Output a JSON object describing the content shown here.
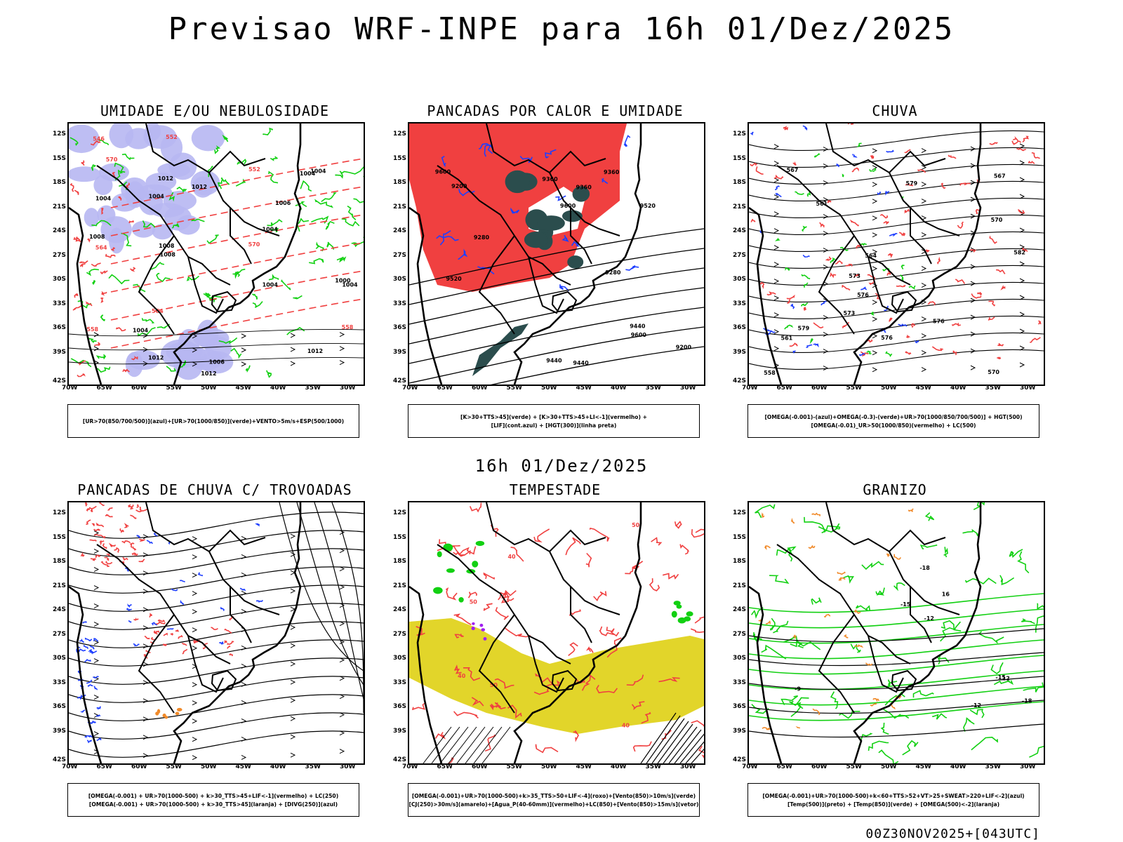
{
  "title": "Previsao WRF-INPE  para 16h 01/Dez/2025",
  "subtitle": "16h 01/Dez/2025",
  "footer": "00Z30NOV2025+[043UTC]",
  "axes": {
    "lat": [
      "12S",
      "15S",
      "18S",
      "21S",
      "24S",
      "27S",
      "30S",
      "33S",
      "36S",
      "39S",
      "42S"
    ],
    "lon": [
      "70W",
      "65W",
      "60W",
      "55W",
      "50W",
      "45W",
      "40W",
      "35W",
      "30W"
    ]
  },
  "panels": [
    {
      "id": "umidade",
      "title": "UMIDADE E/OU NEBULOSIDADE",
      "legend": [
        "[UR>70(850/700/500)](azul)+[UR>70(1000/850)](verde)+VENTO>5m/s+ESP(500/1000)"
      ],
      "contour_labels": [
        "1004",
        "1004",
        "1004",
        "1006",
        "1004",
        "1012",
        "1004",
        "1008",
        "1004",
        "1004",
        "1000",
        "1012",
        "1006",
        "1004",
        "1008",
        "1012",
        "1008",
        "1012",
        "1012"
      ],
      "red_labels": [
        "570",
        "564",
        "570",
        "558",
        "552",
        "546",
        "564",
        "558",
        "552"
      ]
    },
    {
      "id": "pancadas-calor",
      "title": "PANCADAS POR CALOR E UMIDADE",
      "legend": [
        "[K>30+TTS>45](verde) + [K>30+TTS>45+LI<-1](vermelho) +",
        "[LIF](cont.azul) + [HGT(300)](linha preta)"
      ],
      "contour_labels": [
        "9600",
        "9600",
        "9600",
        "9520",
        "9440",
        "9360",
        "9440",
        "9360",
        "9280",
        "9520",
        "9440",
        "9360",
        "9280",
        "9200",
        "9200"
      ]
    },
    {
      "id": "chuva",
      "title": "CHUVA",
      "legend": [
        "[OMEGA(-0.001)-(azul)+OMEGA(-0.3)-(verde)+UR>70(1000/850/700/500)] + HGT(500)",
        "[OMEGA(-0.01)_UR>50(1000/850)(vermelho) + LC(500)"
      ],
      "contour_labels": [
        "582",
        "579",
        "576",
        "576",
        "573",
        "570",
        "567",
        "564",
        "561",
        "558",
        "579",
        "576",
        "573",
        "570",
        "567",
        "561"
      ]
    },
    {
      "id": "trovoadas",
      "title": "PANCADAS DE CHUVA C/ TROVOADAS",
      "legend": [
        "[OMEGA(-0.001) + UR>70(1000-500) + k>30_TTS>45+LIF<-1](vermelho) + LC(250)",
        "[OMEGA(-0.001) + UR>70(1000-500) + k>30_TTS>45](laranja) + [DIVG(250)](azul)"
      ],
      "contour_labels": []
    },
    {
      "id": "tempestade",
      "title": "TEMPESTADE",
      "legend": [
        "[OMEGA(-0.001)+UR>70(1000-500)+k>35_TTS>50+LIF<-4](roxo)+[Vento(850)>10m/s](verde)",
        "[CJ(250)>30m/s](amarelo)+[Agua_P(40-60mm)](vermelho)+LC(850)+[Vento(850)>15m/s](vetor)"
      ],
      "contour_labels": [
        "50",
        "50",
        "40",
        "40",
        "50",
        "40"
      ]
    },
    {
      "id": "granizo",
      "title": "GRANIZO",
      "legend": [
        "[OMEGA(-0.001)+UR>70(1000-500)+k<60+TTS>52+VT>25+SWEAT>220+LIF<-2](azul)",
        "[Temp(500)](preto) + [Temp(850)](verde) + [OMEGA(500)<-2](laranja)"
      ],
      "contour_labels": [
        "-9",
        "-12",
        "-15",
        "-18",
        "-18",
        "-12",
        "-15",
        "16",
        "12"
      ]
    }
  ],
  "colors": {
    "blue": "#1f3fff",
    "green": "#12d012",
    "red": "#f04040",
    "lavender": "#b7b7f2",
    "yellow": "#e2d52a",
    "orange": "#f08a2a",
    "darkteal": "#2b4d4d",
    "purple": "#a020f0"
  }
}
